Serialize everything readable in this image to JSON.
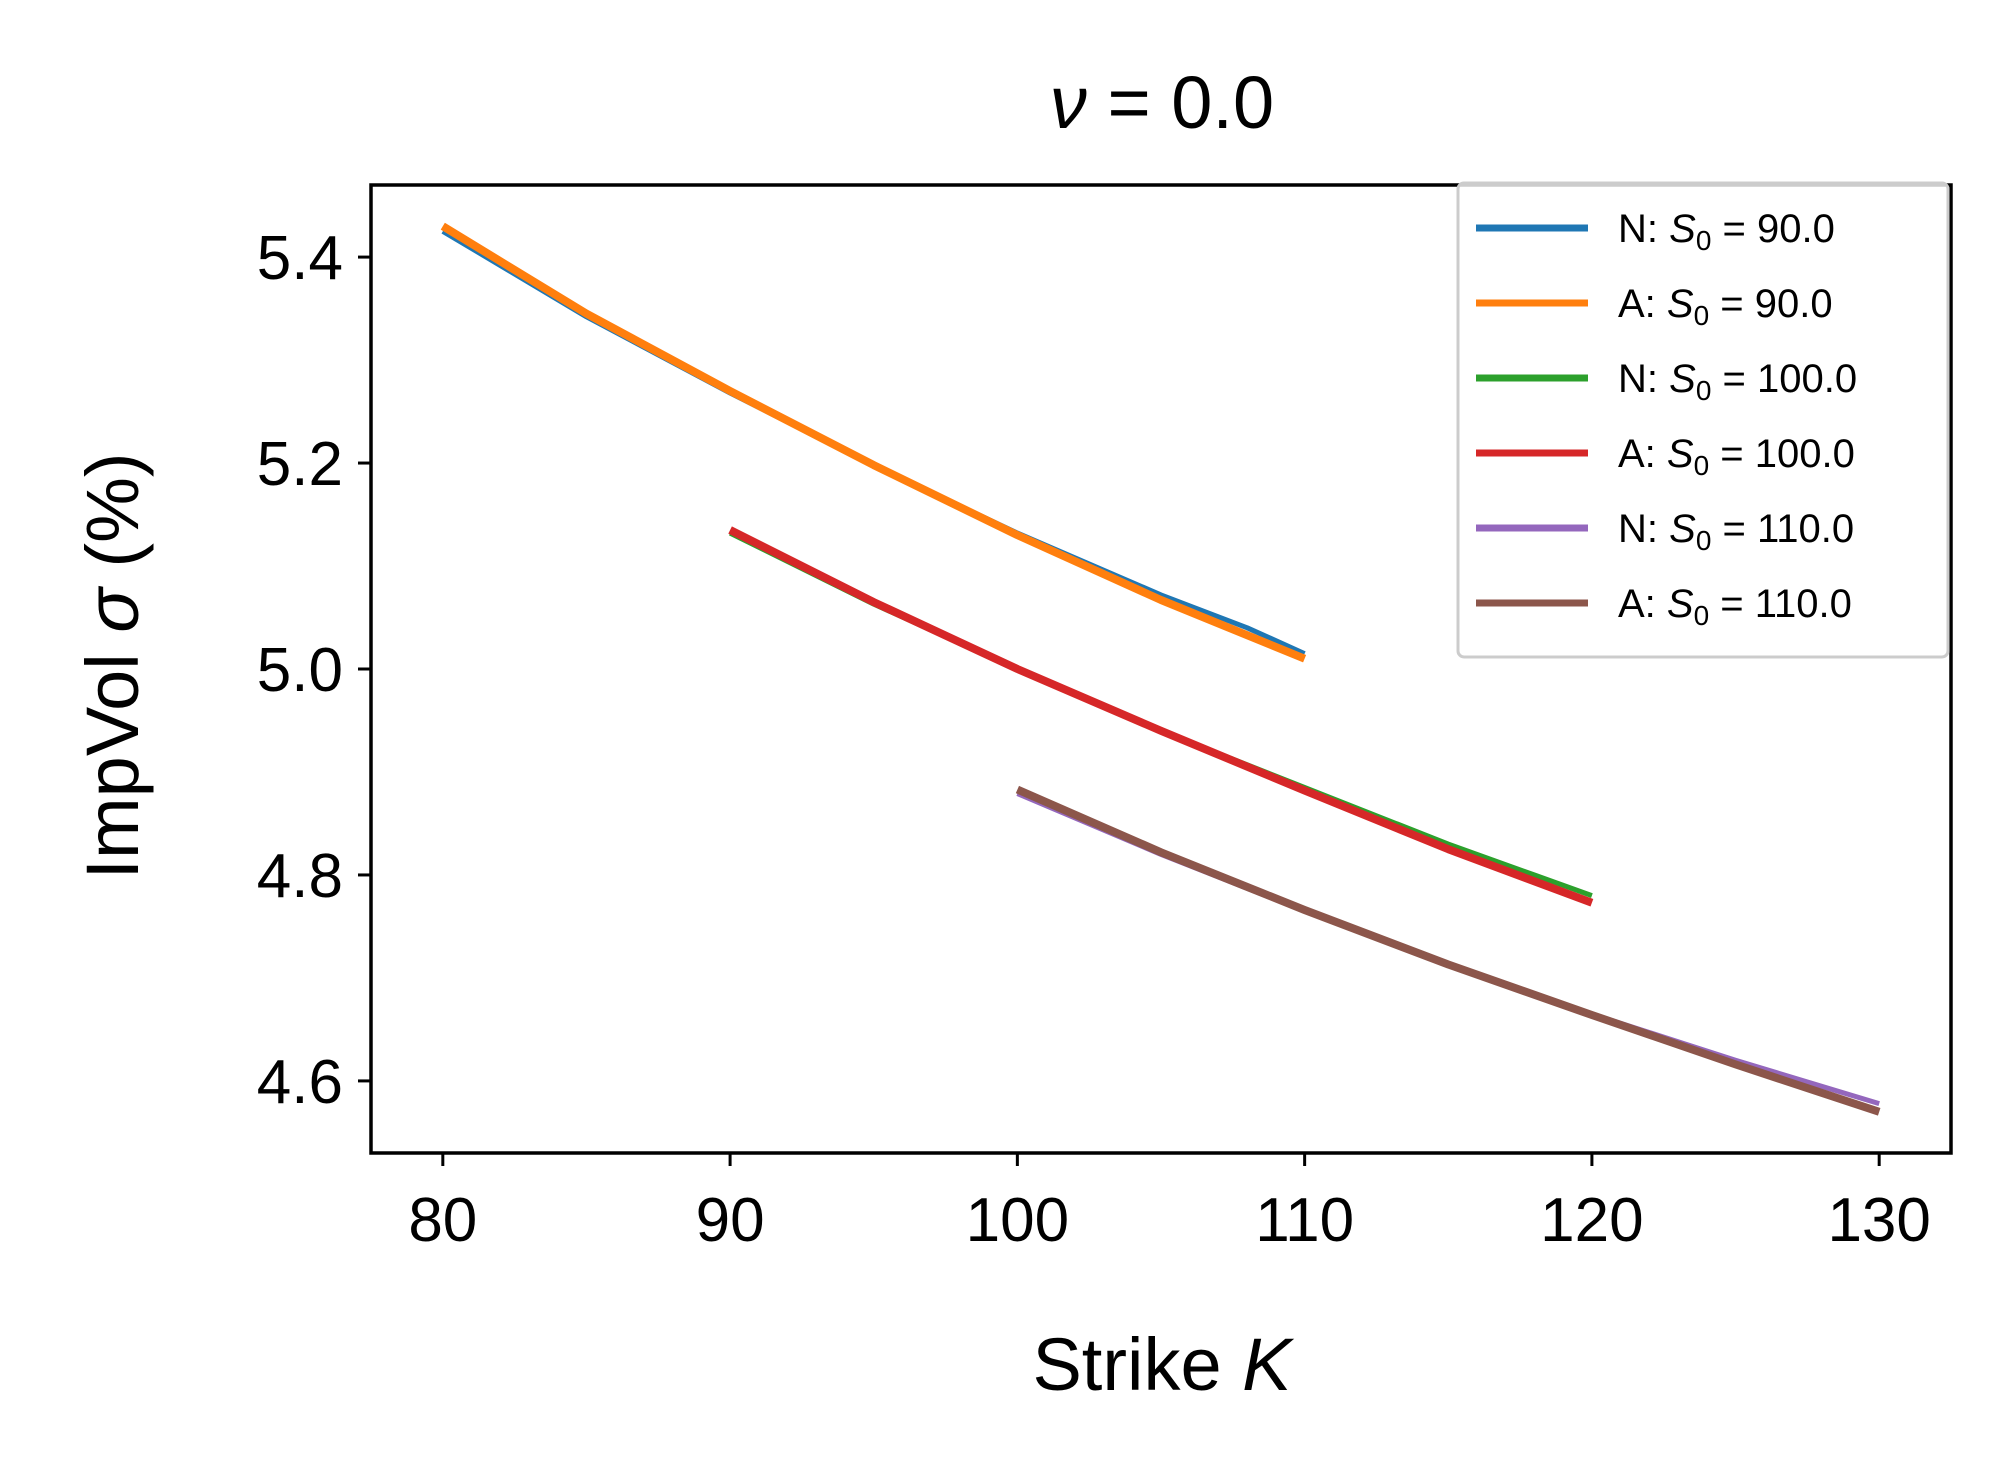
{
  "chart_data": {
    "type": "line",
    "title": {
      "var": "ν",
      "eq": " = ",
      "val": "0.0"
    },
    "xlabel": {
      "text": "Strike ",
      "var": "K"
    },
    "ylabel": {
      "pre": "ImpVol ",
      "var": "σ",
      "post": " (%)"
    },
    "xlim": [
      77.5,
      132.5
    ],
    "ylim": [
      4.53,
      5.47
    ],
    "xticks": [
      80,
      90,
      100,
      110,
      120,
      130
    ],
    "xtick_labels": [
      "80",
      "90",
      "100",
      "110",
      "120",
      "130"
    ],
    "yticks": [
      4.6,
      4.8,
      5.0,
      5.2,
      5.4
    ],
    "ytick_labels": [
      "4.6",
      "4.8",
      "5.0",
      "5.2",
      "5.4"
    ],
    "grid": false,
    "legend_position": "top-right",
    "series": [
      {
        "name": "N: S0 = 90.0",
        "legend": {
          "prefix": "N: ",
          "sym": "S",
          "sub": "0",
          "suffix": " = 90.0"
        },
        "color": "#1f77b4",
        "x": [
          80,
          85,
          90,
          95,
          100,
          105,
          108,
          110
        ],
        "y": [
          5.425,
          5.342,
          5.268,
          5.198,
          5.132,
          5.072,
          5.04,
          5.015
        ]
      },
      {
        "name": "A: S0 = 90.0",
        "legend": {
          "prefix": "A: ",
          "sym": "S",
          "sub": "0",
          "suffix": " = 90.0"
        },
        "color": "#ff7f0e",
        "x": [
          80,
          85,
          90,
          95,
          100,
          105,
          110
        ],
        "y": [
          5.43,
          5.345,
          5.27,
          5.198,
          5.13,
          5.067,
          5.01
        ]
      },
      {
        "name": "N: S0 = 100.0",
        "legend": {
          "prefix": "N: ",
          "sym": "S",
          "sub": "0",
          "suffix": " = 100.0"
        },
        "color": "#2ca02c",
        "x": [
          90,
          95,
          100,
          105,
          110,
          115,
          118,
          120
        ],
        "y": [
          5.132,
          5.063,
          5.0,
          4.94,
          4.885,
          4.83,
          4.8,
          4.78
        ]
      },
      {
        "name": "A: S0 = 100.0",
        "legend": {
          "prefix": "A: ",
          "sym": "S",
          "sub": "0",
          "suffix": " = 100.0"
        },
        "color": "#d62728",
        "x": [
          90,
          95,
          100,
          105,
          110,
          115,
          120
        ],
        "y": [
          5.135,
          5.065,
          5.0,
          4.94,
          4.882,
          4.825,
          4.773
        ]
      },
      {
        "name": "N: S0 = 110.0",
        "legend": {
          "prefix": "N: ",
          "sym": "S",
          "sub": "0",
          "suffix": " = 110.0"
        },
        "color": "#9467bd",
        "x": [
          100,
          105,
          110,
          115,
          120,
          125,
          130
        ],
        "y": [
          4.879,
          4.82,
          4.765,
          4.713,
          4.665,
          4.62,
          4.578
        ]
      },
      {
        "name": "A: S0 = 110.0",
        "legend": {
          "prefix": "A: ",
          "sym": "S",
          "sub": "0",
          "suffix": " = 110.0"
        },
        "color": "#8c564b",
        "x": [
          100,
          105,
          110,
          115,
          120,
          125,
          130
        ],
        "y": [
          4.883,
          4.822,
          4.766,
          4.713,
          4.664,
          4.616,
          4.57
        ]
      }
    ]
  }
}
